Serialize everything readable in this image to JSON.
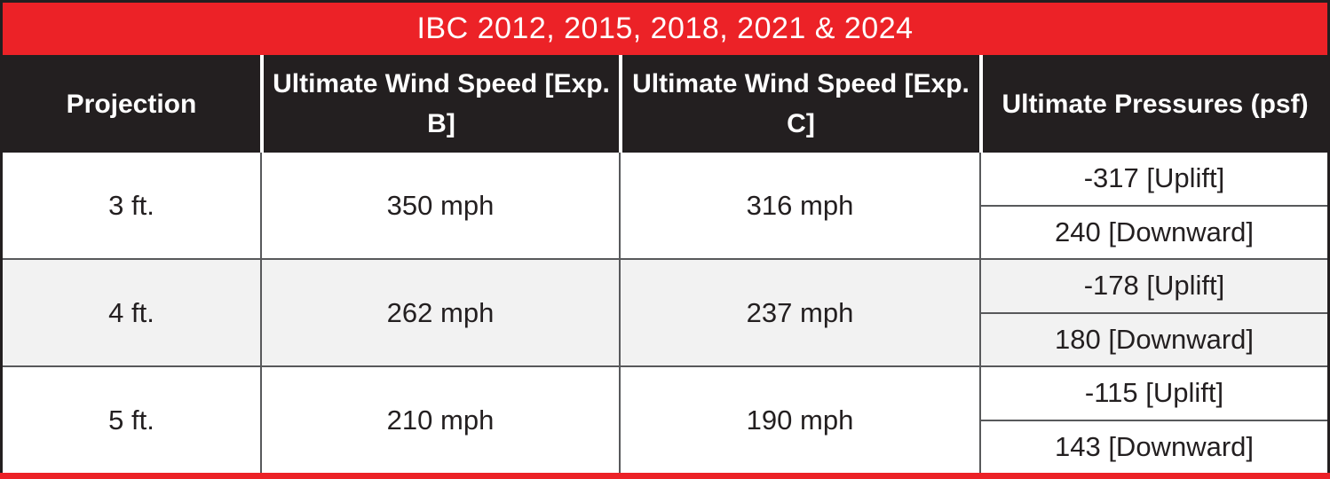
{
  "title_bar": {
    "text": "IBC 2012, 2015, 2018, 2021 & 2024"
  },
  "header": {
    "columns": [
      "Projection",
      "Ultimate Wind Speed [Exp. B]",
      "Ultimate Wind Speed [Exp. C]",
      "Ultimate Pressures (psf)"
    ]
  },
  "rows": [
    {
      "projection": "3 ft.",
      "exp_b": "350 mph",
      "exp_c": "316 mph",
      "uplift": "-317 [Uplift]",
      "downward": "240 [Downward]"
    },
    {
      "projection": "4 ft.",
      "exp_b": "262 mph",
      "exp_c": "237 mph",
      "uplift": "-178 [Uplift]",
      "downward": "180 [Downward]"
    },
    {
      "projection": "5 ft.",
      "exp_b": "210 mph",
      "exp_c": "190 mph",
      "uplift": "-115 [Uplift]",
      "downward": "143 [Downward]"
    }
  ],
  "colors": {
    "accent_red": "#EC2227",
    "header_bg": "#231F20",
    "header_text": "#FFFFFF",
    "alt_row_bg": "#F2F2F2",
    "grid_line": "#58595B",
    "body_text": "#231F20"
  },
  "chart_data": {
    "type": "table",
    "title": "IBC 2012, 2015, 2018, 2021 & 2024",
    "columns": [
      "Projection",
      "Ultimate Wind Speed [Exp. B]",
      "Ultimate Wind Speed [Exp. C]",
      "Ultimate Pressures (psf)"
    ],
    "rows": [
      [
        "3 ft.",
        "350 mph",
        "316 mph",
        "-317 [Uplift]",
        "240 [Downward]"
      ],
      [
        "4 ft.",
        "262 mph",
        "237 mph",
        "-178 [Uplift]",
        "180 [Downward]"
      ],
      [
        "5 ft.",
        "210 mph",
        "190 mph",
        "-115 [Uplift]",
        "143 [Downward]"
      ]
    ]
  }
}
